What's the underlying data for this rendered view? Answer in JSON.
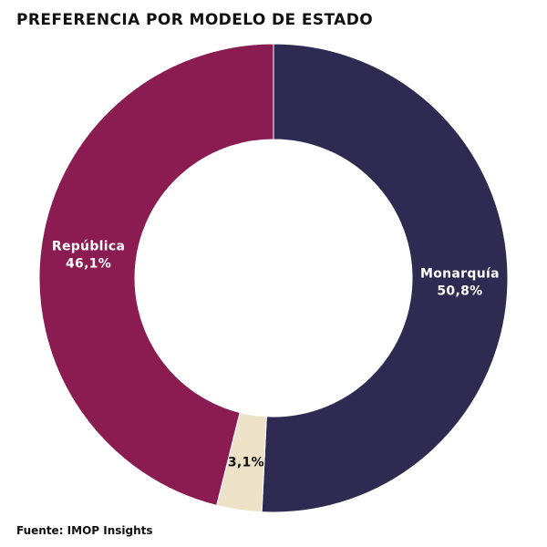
{
  "title": "PREFERENCIA POR MODELO DE ESTADO",
  "source": "Fuente: IMOP Insights",
  "chart_data": {
    "type": "pie",
    "variant": "donut",
    "title": "PREFERENCIA POR MODELO DE ESTADO",
    "slices": [
      {
        "name": "Monarquía",
        "value": 50.8,
        "label": "50,8%",
        "color": "#2e2a51",
        "label_color": "#ffffff"
      },
      {
        "name": "",
        "value": 3.1,
        "label": "3,1%",
        "color": "#ede1c8",
        "label_color": "#111111"
      },
      {
        "name": "República",
        "value": 46.1,
        "label": "46,1%",
        "color": "#8a1c52",
        "label_color": "#ffffff"
      }
    ],
    "start": "top",
    "direction": "clockwise"
  }
}
